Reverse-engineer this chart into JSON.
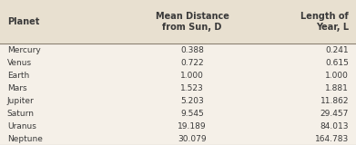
{
  "header_planet": "Planet",
  "header_distance": "Mean Distance\nfrom Sun, D",
  "header_year": "Length of\nYear, L",
  "planets": [
    "Mercury",
    "Venus",
    "Earth",
    "Mars",
    "Jupiter",
    "Saturn",
    "Uranus",
    "Neptune"
  ],
  "distances": [
    "0.388",
    "0.722",
    "1.000",
    "1.523",
    "5.203",
    "9.545",
    "19.189",
    "30.079"
  ],
  "years": [
    "0.241",
    "0.615",
    "1.000",
    "1.881",
    "11.862",
    "29.457",
    "84.013",
    "164.783"
  ],
  "header_bg": "#e8e0d0",
  "row_bg": "#f5f0e8",
  "line_color": "#8a8070",
  "header_text_color": "#3a3a3a",
  "row_text_color": "#3a3a3a",
  "fig_width": 3.91,
  "fig_height": 1.6,
  "dpi": 100
}
